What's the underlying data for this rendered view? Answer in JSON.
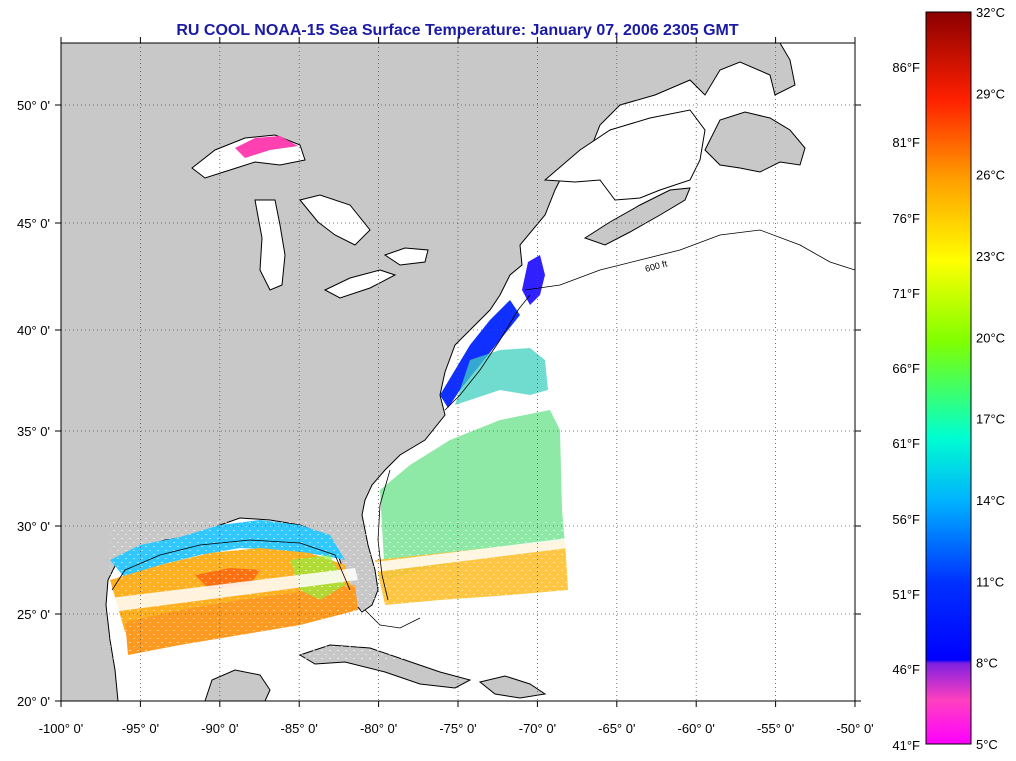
{
  "title": "RU COOL  NOAA-15  Sea Surface Temperature:  January 07, 2006 2305 GMT",
  "map": {
    "lon_labels": [
      "-100° 0'",
      "-95° 0'",
      "-90° 0'",
      "-85° 0'",
      "-80° 0'",
      "-75° 0'",
      "-70° 0'",
      "-65° 0'",
      "-60° 0'",
      "-55° 0'",
      "-50° 0'"
    ],
    "lat_labels": [
      "20° 0'",
      "25° 0'",
      "30° 0'",
      "35° 0'",
      "40° 0'",
      "45° 0'",
      "50° 0'"
    ],
    "isobath_label": "600 ft",
    "colors": {
      "land": "#c8c8c8",
      "ocean": "#ffffff",
      "outline": "#000000",
      "grid": "#555555"
    }
  },
  "colorbar": {
    "celsius_labels": [
      "32°C",
      "29°C",
      "26°C",
      "23°C",
      "20°C",
      "17°C",
      "14°C",
      "11°C",
      "8°C",
      "5°C"
    ],
    "fahrenheit_labels": [
      "86°F",
      "81°F",
      "76°F",
      "71°F",
      "66°F",
      "61°F",
      "56°F",
      "51°F",
      "46°F",
      "41°F"
    ]
  }
}
